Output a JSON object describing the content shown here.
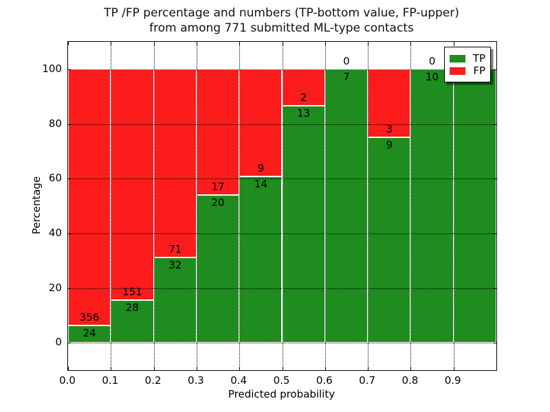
{
  "figure": {
    "background": "#ffffff",
    "text_color": "#000000"
  },
  "chart_data": {
    "type": "bar",
    "stacked": true,
    "normalized_to_percent": true,
    "title_line1": "TP /FP percentage and numbers (TP-bottom value, FP-upper)",
    "title_line2": "from among 771 submitted ML-type contacts",
    "total_contacts": 771,
    "xlabel": "Predicted probability",
    "ylabel": "Percentage",
    "bin_edges": [
      0.0,
      0.1,
      0.2,
      0.3,
      0.4,
      0.5,
      0.6,
      0.7,
      0.8,
      0.9,
      1.0
    ],
    "series": [
      {
        "name": "TP",
        "color": "#1e8c1e",
        "values": [
          24,
          28,
          32,
          20,
          14,
          13,
          7,
          9,
          10,
          5
        ]
      },
      {
        "name": "FP",
        "color": "#fc1c1c",
        "values": [
          356,
          151,
          71,
          17,
          9,
          2,
          0,
          3,
          0,
          0
        ]
      }
    ],
    "percent_tp": [
      6.3,
      15.6,
      31.1,
      54.1,
      60.9,
      86.7,
      100.0,
      75.0,
      100.0,
      100.0
    ],
    "xlim": [
      0.0,
      1.0
    ],
    "ylim": [
      -10,
      110
    ],
    "xticks": [
      "0.0",
      "0.1",
      "0.2",
      "0.3",
      "0.4",
      "0.5",
      "0.6",
      "0.7",
      "0.8",
      "0.9"
    ],
    "yticks": [
      0,
      20,
      40,
      60,
      80,
      100
    ],
    "grid": true,
    "grid_style": "dotted",
    "legend": {
      "position": "upper right",
      "entries": [
        {
          "label": "TP",
          "color": "#1e8c1e"
        },
        {
          "label": "FP",
          "color": "#fc1c1c"
        }
      ]
    }
  }
}
